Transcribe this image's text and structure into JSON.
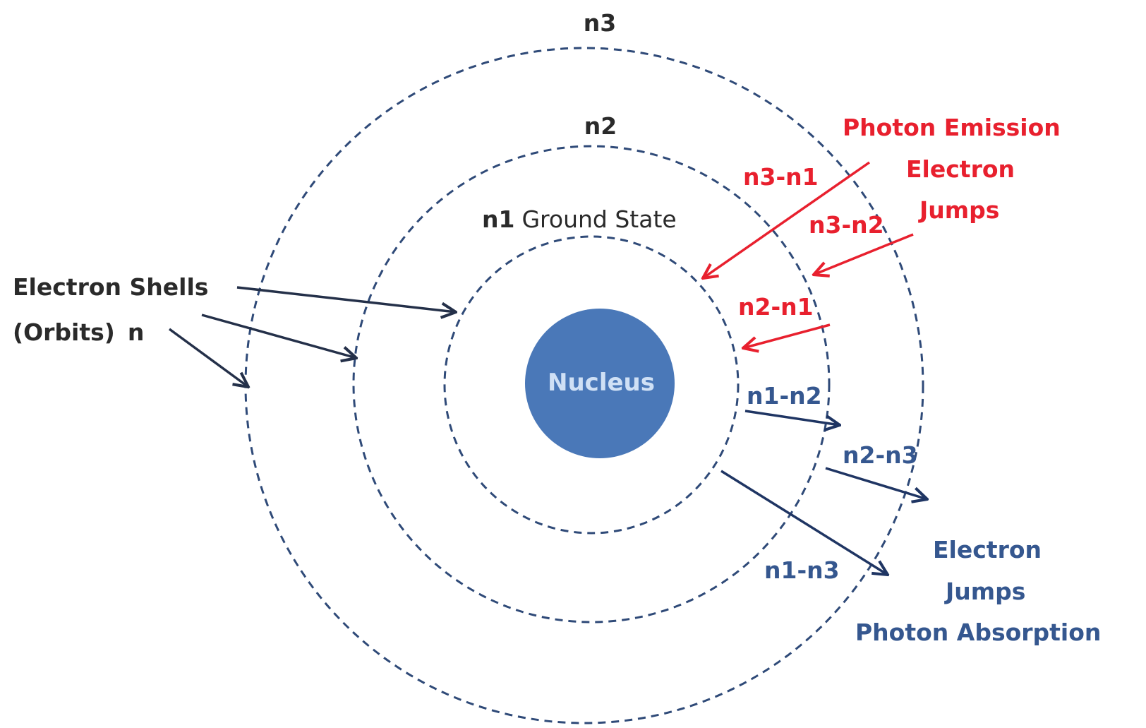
{
  "shells": {
    "n3_label": "n3",
    "n2_label": "n2",
    "n1_bold": "n1",
    "n1_desc": "Ground State"
  },
  "nucleus": {
    "label": "Nucleus"
  },
  "electron_shells_caption": {
    "line1": "Electron Shells",
    "line2_text": "(Orbits)",
    "line2_n": "n"
  },
  "emission": {
    "heading_line1": "Photon Emission",
    "heading_line2": "Electron",
    "heading_line3": "Jumps",
    "transitions": [
      "n3-n1",
      "n3-n2",
      "n2-n1"
    ]
  },
  "absorption": {
    "heading_line1": "Electron",
    "heading_line2": "Jumps",
    "heading_line3": "Photon Absorption",
    "transitions": [
      "n1-n2",
      "n2-n3",
      "n1-n3"
    ]
  },
  "colors": {
    "shell_stroke": "#2f4a78",
    "nucleus_fill": "#4a78b8",
    "emission": "#e8202e",
    "absorption": "#35578f",
    "text_dark": "#2a2a2a"
  }
}
